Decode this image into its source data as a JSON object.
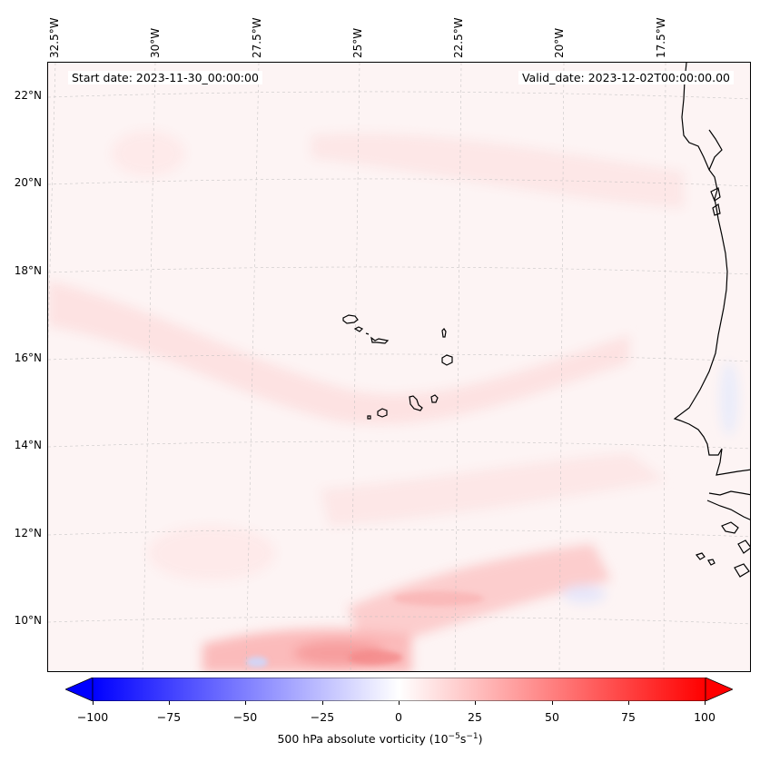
{
  "map": {
    "start_date": "Start date: 2023-11-30_00:00:00",
    "valid_date": "Valid_date: 2023-12-02T00:00:00.00",
    "lon_labels": [
      "32.5°W",
      "30°W",
      "27.5°W",
      "25°W",
      "22.5°W",
      "20°W",
      "17.5°W"
    ],
    "lat_labels": [
      "22°N",
      "20°N",
      "18°N",
      "16°N",
      "14°N",
      "12°N",
      "10°N"
    ],
    "background_color": "#fdf4f4",
    "coastline_color": "#000000"
  },
  "colorbar": {
    "ticks": [
      "−100",
      "−75",
      "−50",
      "−25",
      "0",
      "25",
      "50",
      "75",
      "100"
    ],
    "label": "500 hPa absolute vorticity (10",
    "label_exp1": "−5",
    "label_mid": "s",
    "label_exp2": "−1",
    "label_end": ")",
    "min": -100,
    "max": 100,
    "colors": {
      "min": "#0000ff",
      "mid": "#ffffff",
      "max": "#ff0000"
    }
  }
}
